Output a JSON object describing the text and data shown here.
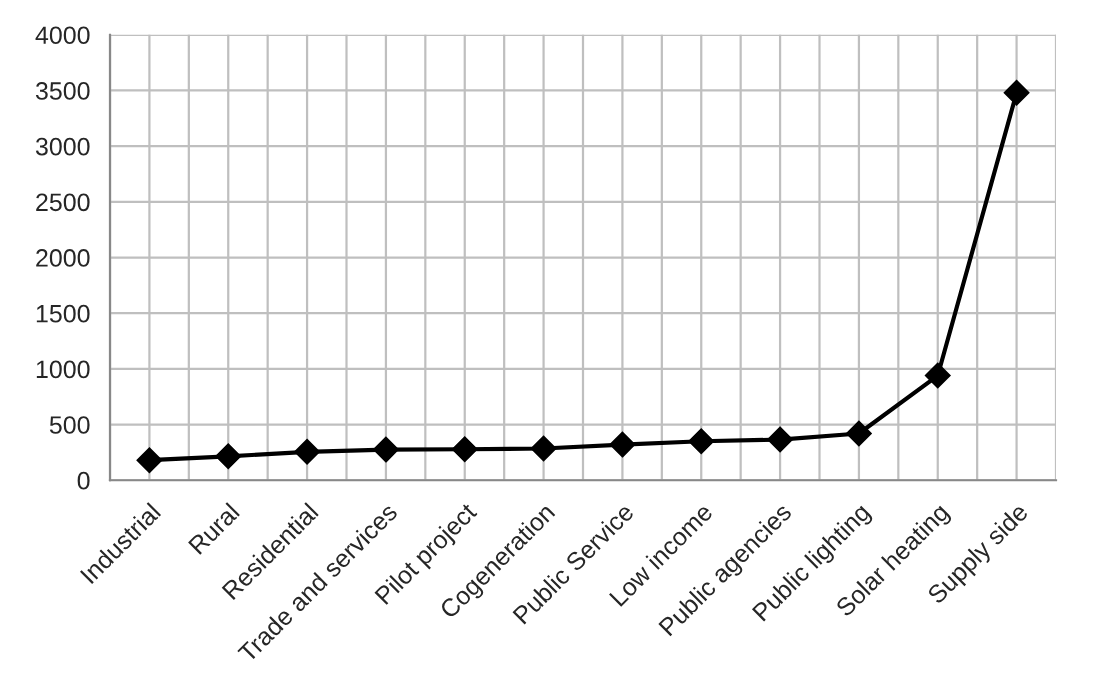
{
  "chart_data": {
    "type": "line",
    "categories": [
      "Industrial",
      "Rural",
      "Residential",
      "Trade and services",
      "Pilot project",
      "Cogeneration",
      "Public Service",
      "Low income",
      "Public agencies",
      "Public lighting",
      "Solar heating",
      "Supply side"
    ],
    "series": [
      {
        "color": "#000000",
        "values": [
          180,
          215,
          255,
          275,
          278,
          285,
          320,
          350,
          365,
          420,
          940,
          3480
        ]
      }
    ],
    "ylim": [
      0,
      4000
    ],
    "yticks": [
      0,
      500,
      1000,
      1500,
      2000,
      2500,
      3000,
      3500,
      4000
    ],
    "grid": true,
    "marker": "diamond",
    "line_style": "solid"
  }
}
